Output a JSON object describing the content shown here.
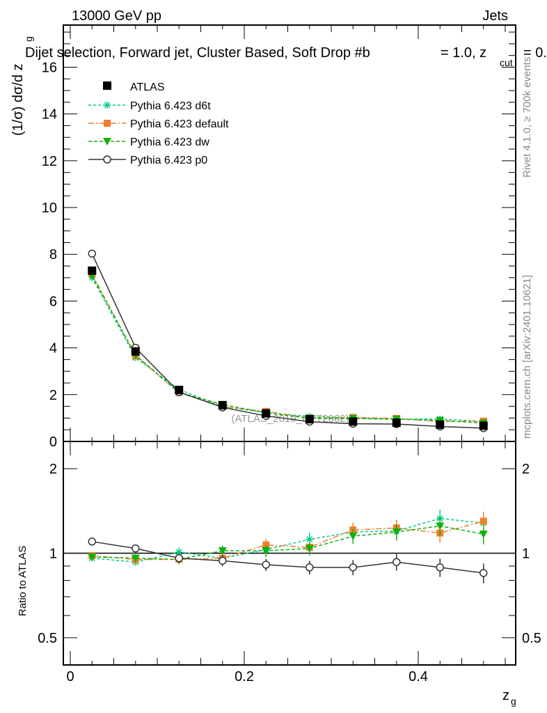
{
  "header": {
    "left": "13000 GeV pp",
    "right": "Jets"
  },
  "chart_data": {
    "type": "line",
    "title": "Dijet selection, Forward jet, Cluster Based, Soft Drop #b = 1.0, z_cut = 0.",
    "title_main": "Dijet selection, Forward jet, Cluster Based, Soft Drop #b",
    "title_eta": "= 1.0, z",
    "title_sub": "cut",
    "title_tail": " = 0.",
    "xlabel": "z",
    "xlabel_sub": "g",
    "ylabel": "(1/σ) dσ/d z",
    "ylabel_sub": "g",
    "ratio_ylabel": "Ratio to ATLAS",
    "xlim": [
      -0.008,
      0.512
    ],
    "ylim": [
      0,
      17.8
    ],
    "ratio_ylim": [
      0.4,
      2.5
    ],
    "x": [
      0.025,
      0.075,
      0.125,
      0.175,
      0.225,
      0.275,
      0.325,
      0.375,
      0.425,
      0.475
    ],
    "xticks": [
      "0",
      "0.2",
      "0.4"
    ],
    "yticks": [
      "0",
      "2",
      "4",
      "6",
      "8",
      "10",
      "12",
      "14",
      "16"
    ],
    "ratio_yticks": [
      "0.5",
      "1",
      "2"
    ],
    "watermark": "(ATLAS_2019_I1772062)",
    "side_top": "Rivet 4.1.0, ≥ 700k events",
    "side_bottom": "mcplots.cern.ch [arXiv:2401.10621]",
    "data": {
      "name": "ATLAS",
      "values": [
        7.3,
        3.85,
        2.2,
        1.55,
        1.2,
        0.95,
        0.85,
        0.8,
        0.72,
        0.67
      ]
    },
    "series": [
      {
        "name": "Pythia 6.423 d6t",
        "color": "#00cc88",
        "dash": "4,3",
        "marker": "star",
        "ratio": [
          0.96,
          0.93,
          1.01,
          0.96,
          1.03,
          1.12,
          1.19,
          1.2,
          1.33,
          1.28
        ]
      },
      {
        "name": "Pythia 6.423 default",
        "color": "#f07f2a",
        "dash": "8,3,2,3",
        "marker": "square",
        "ratio": [
          0.98,
          0.95,
          0.95,
          0.96,
          1.07,
          1.05,
          1.21,
          1.23,
          1.18,
          1.3
        ]
      },
      {
        "name": "Pythia 6.423 dw",
        "color": "#10b010",
        "dash": "5,3",
        "marker": "triangle",
        "ratio": [
          0.97,
          0.96,
          0.95,
          1.02,
          1.02,
          1.04,
          1.15,
          1.19,
          1.25,
          1.17
        ]
      },
      {
        "name": "Pythia 6.423 p0",
        "color": "#333333",
        "dash": "",
        "marker": "circle",
        "ratio": [
          1.1,
          1.04,
          0.96,
          0.94,
          0.91,
          0.89,
          0.89,
          0.93,
          0.89,
          0.85
        ]
      }
    ]
  }
}
